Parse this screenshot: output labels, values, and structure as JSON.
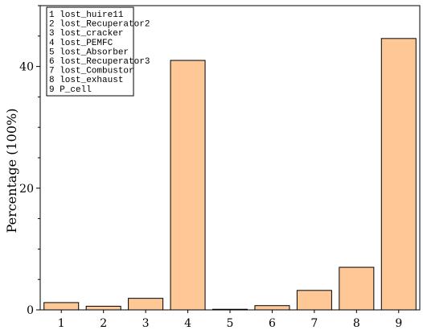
{
  "chart_data": {
    "type": "bar",
    "categories": [
      "1",
      "2",
      "3",
      "4",
      "5",
      "6",
      "7",
      "8",
      "9"
    ],
    "values": [
      1.2,
      0.6,
      1.9,
      41.0,
      0.1,
      0.7,
      3.2,
      7.0,
      44.6
    ],
    "title": "",
    "xlabel": "",
    "ylabel": "Percentage (100%)",
    "ylim": [
      0,
      50
    ],
    "yticks": [
      0,
      20,
      40
    ],
    "grid": false,
    "bar_color": "#FDC896",
    "bar_edge_color": "#000000",
    "legend_placement": "top-left",
    "legend": [
      "1 lost_huire11",
      "2 lost_Recuperator2",
      "3 lost_cracker",
      "4 lost_PEMFC",
      "5 lost_Absorber",
      "6 lost_Recuperator3",
      "7 lost_Combustor",
      "8 lost_exhaust",
      "9 P_cell"
    ]
  }
}
